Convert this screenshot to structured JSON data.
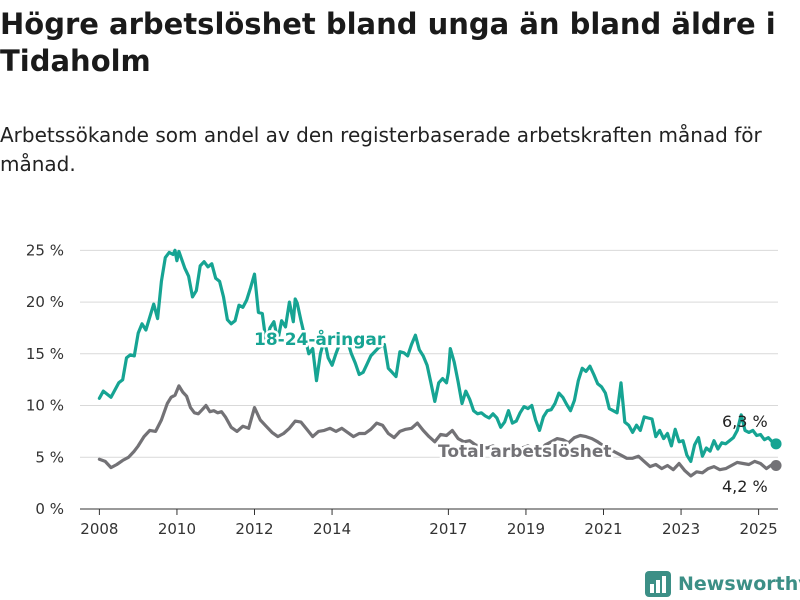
{
  "title": "Högre arbetslöshet bland unga än bland äldre i Tidaholm",
  "subtitle": "Arbetssökande som andel av den registerbaserade arbetskraften månad för månad.",
  "brand": "Newsworthy",
  "colors": {
    "youth": "#16a493",
    "total": "#737276",
    "grid": "#d9d9d9",
    "brand": "#3c8f86"
  },
  "chart_data": {
    "type": "line",
    "yticks": [
      "0 %",
      "5 %",
      "10 %",
      "15 %",
      "20 %",
      "25 %"
    ],
    "ylim": [
      0,
      26
    ],
    "xlim": [
      2007.5,
      2025.5
    ],
    "xticks": [
      {
        "value": 2008,
        "label": "2008"
      },
      {
        "value": 2010,
        "label": "2010"
      },
      {
        "value": 2012,
        "label": "2012"
      },
      {
        "value": 2014,
        "label": "2014"
      },
      {
        "value": 2017,
        "label": "2017"
      },
      {
        "value": 2019,
        "label": "2019"
      },
      {
        "value": 2021,
        "label": "2021"
      },
      {
        "value": 2023,
        "label": "2023"
      },
      {
        "value": 2025,
        "label": "2025"
      }
    ],
    "series": [
      {
        "name": "18-24-åringar",
        "end_label": "6,3 %",
        "points": [
          [
            2008.0,
            10.7
          ],
          [
            2008.1,
            11.4
          ],
          [
            2008.3,
            10.8
          ],
          [
            2008.5,
            12.2
          ],
          [
            2008.6,
            12.5
          ],
          [
            2008.7,
            14.6
          ],
          [
            2008.8,
            14.9
          ],
          [
            2008.9,
            14.8
          ],
          [
            2009.0,
            17.0
          ],
          [
            2009.1,
            17.9
          ],
          [
            2009.2,
            17.3
          ],
          [
            2009.4,
            19.8
          ],
          [
            2009.5,
            18.4
          ],
          [
            2009.6,
            22.0
          ],
          [
            2009.7,
            24.3
          ],
          [
            2009.8,
            24.8
          ],
          [
            2009.9,
            24.6
          ],
          [
            2009.95,
            25.0
          ],
          [
            2010.0,
            24.0
          ],
          [
            2010.05,
            24.9
          ],
          [
            2010.2,
            23.3
          ],
          [
            2010.3,
            22.5
          ],
          [
            2010.4,
            20.5
          ],
          [
            2010.5,
            21.1
          ],
          [
            2010.6,
            23.5
          ],
          [
            2010.7,
            23.9
          ],
          [
            2010.8,
            23.4
          ],
          [
            2010.9,
            23.7
          ],
          [
            2011.0,
            22.3
          ],
          [
            2011.1,
            22.0
          ],
          [
            2011.2,
            20.5
          ],
          [
            2011.3,
            18.3
          ],
          [
            2011.4,
            17.9
          ],
          [
            2011.5,
            18.2
          ],
          [
            2011.6,
            19.7
          ],
          [
            2011.7,
            19.5
          ],
          [
            2011.8,
            20.2
          ],
          [
            2011.9,
            21.4
          ],
          [
            2012.0,
            22.7
          ],
          [
            2012.1,
            19.0
          ],
          [
            2012.2,
            18.9
          ],
          [
            2012.3,
            16.1
          ],
          [
            2012.4,
            17.5
          ],
          [
            2012.5,
            18.1
          ],
          [
            2012.6,
            16.3
          ],
          [
            2012.7,
            18.2
          ],
          [
            2012.8,
            17.6
          ],
          [
            2012.9,
            20.0
          ],
          [
            2013.0,
            18.1
          ],
          [
            2013.05,
            20.3
          ],
          [
            2013.1,
            19.9
          ],
          [
            2013.2,
            18.2
          ],
          [
            2013.3,
            16.6
          ],
          [
            2013.4,
            15.0
          ],
          [
            2013.5,
            15.5
          ],
          [
            2013.6,
            12.4
          ],
          [
            2013.7,
            15.0
          ],
          [
            2013.8,
            16.4
          ],
          [
            2013.9,
            14.6
          ],
          [
            2014.0,
            13.9
          ],
          [
            2014.1,
            15.0
          ],
          [
            2014.2,
            16.0
          ],
          [
            2014.35,
            16.8
          ],
          [
            2014.5,
            15.0
          ],
          [
            2014.6,
            14.1
          ],
          [
            2014.7,
            13.0
          ],
          [
            2014.8,
            13.2
          ],
          [
            2014.9,
            14.0
          ],
          [
            2015.0,
            14.8
          ],
          [
            2015.2,
            15.6
          ],
          [
            2015.35,
            15.9
          ],
          [
            2015.45,
            13.6
          ],
          [
            2015.55,
            13.2
          ],
          [
            2015.65,
            12.8
          ],
          [
            2015.75,
            15.2
          ],
          [
            2015.85,
            15.1
          ],
          [
            2015.95,
            14.8
          ],
          [
            2016.05,
            15.9
          ],
          [
            2016.15,
            16.8
          ],
          [
            2016.25,
            15.4
          ],
          [
            2016.35,
            14.8
          ],
          [
            2016.45,
            13.9
          ],
          [
            2016.55,
            12.2
          ],
          [
            2016.65,
            10.4
          ],
          [
            2016.75,
            12.2
          ],
          [
            2016.85,
            12.6
          ],
          [
            2016.95,
            12.2
          ],
          [
            2017.0,
            13.2
          ],
          [
            2017.05,
            15.5
          ],
          [
            2017.15,
            14.2
          ],
          [
            2017.25,
            12.3
          ],
          [
            2017.35,
            10.2
          ],
          [
            2017.45,
            11.4
          ],
          [
            2017.55,
            10.6
          ],
          [
            2017.65,
            9.5
          ],
          [
            2017.75,
            9.2
          ],
          [
            2017.85,
            9.3
          ],
          [
            2017.95,
            9.0
          ],
          [
            2018.05,
            8.8
          ],
          [
            2018.15,
            9.2
          ],
          [
            2018.25,
            8.8
          ],
          [
            2018.35,
            7.9
          ],
          [
            2018.45,
            8.4
          ],
          [
            2018.55,
            9.5
          ],
          [
            2018.65,
            8.3
          ],
          [
            2018.75,
            8.5
          ],
          [
            2018.85,
            9.3
          ],
          [
            2018.95,
            9.9
          ],
          [
            2019.05,
            9.7
          ],
          [
            2019.15,
            10.0
          ],
          [
            2019.25,
            8.6
          ],
          [
            2019.35,
            7.6
          ],
          [
            2019.45,
            8.9
          ],
          [
            2019.55,
            9.5
          ],
          [
            2019.65,
            9.6
          ],
          [
            2019.75,
            10.2
          ],
          [
            2019.85,
            11.2
          ],
          [
            2019.95,
            10.8
          ],
          [
            2020.05,
            10.1
          ],
          [
            2020.15,
            9.5
          ],
          [
            2020.25,
            10.5
          ],
          [
            2020.35,
            12.4
          ],
          [
            2020.45,
            13.6
          ],
          [
            2020.55,
            13.3
          ],
          [
            2020.65,
            13.8
          ],
          [
            2020.75,
            13.0
          ],
          [
            2020.85,
            12.1
          ],
          [
            2020.95,
            11.8
          ],
          [
            2021.05,
            11.2
          ],
          [
            2021.15,
            9.7
          ],
          [
            2021.25,
            9.5
          ],
          [
            2021.35,
            9.3
          ],
          [
            2021.45,
            12.2
          ],
          [
            2021.55,
            8.4
          ],
          [
            2021.65,
            8.1
          ],
          [
            2021.75,
            7.4
          ],
          [
            2021.85,
            8.1
          ],
          [
            2021.95,
            7.6
          ],
          [
            2022.05,
            8.9
          ],
          [
            2022.15,
            8.8
          ],
          [
            2022.25,
            8.7
          ],
          [
            2022.35,
            7.0
          ],
          [
            2022.45,
            7.6
          ],
          [
            2022.55,
            6.8
          ],
          [
            2022.65,
            7.3
          ],
          [
            2022.75,
            6.1
          ],
          [
            2022.85,
            7.7
          ],
          [
            2022.95,
            6.5
          ],
          [
            2023.05,
            6.6
          ],
          [
            2023.15,
            5.2
          ],
          [
            2023.25,
            4.6
          ],
          [
            2023.35,
            6.2
          ],
          [
            2023.45,
            6.9
          ],
          [
            2023.55,
            5.1
          ],
          [
            2023.65,
            5.9
          ],
          [
            2023.75,
            5.6
          ],
          [
            2023.85,
            6.6
          ],
          [
            2023.95,
            5.8
          ],
          [
            2024.05,
            6.4
          ],
          [
            2024.15,
            6.3
          ],
          [
            2024.25,
            6.6
          ],
          [
            2024.35,
            6.9
          ],
          [
            2024.45,
            7.6
          ],
          [
            2024.55,
            9.1
          ],
          [
            2024.65,
            7.6
          ],
          [
            2024.75,
            7.4
          ],
          [
            2024.85,
            7.6
          ],
          [
            2024.95,
            7.1
          ],
          [
            2025.05,
            7.2
          ],
          [
            2025.15,
            6.7
          ],
          [
            2025.25,
            6.9
          ],
          [
            2025.35,
            6.5
          ],
          [
            2025.45,
            6.3
          ]
        ]
      },
      {
        "name": "Total arbetslöshet",
        "end_label": "4,2 %",
        "points": [
          [
            2008.0,
            4.8
          ],
          [
            2008.15,
            4.6
          ],
          [
            2008.3,
            4.0
          ],
          [
            2008.45,
            4.3
          ],
          [
            2008.6,
            4.7
          ],
          [
            2008.75,
            5.0
          ],
          [
            2008.9,
            5.6
          ],
          [
            2009.0,
            6.1
          ],
          [
            2009.15,
            7.0
          ],
          [
            2009.3,
            7.6
          ],
          [
            2009.45,
            7.5
          ],
          [
            2009.6,
            8.6
          ],
          [
            2009.75,
            10.2
          ],
          [
            2009.85,
            10.8
          ],
          [
            2009.95,
            11.0
          ],
          [
            2010.05,
            11.9
          ],
          [
            2010.15,
            11.3
          ],
          [
            2010.25,
            10.9
          ],
          [
            2010.35,
            9.8
          ],
          [
            2010.45,
            9.3
          ],
          [
            2010.55,
            9.2
          ],
          [
            2010.65,
            9.6
          ],
          [
            2010.75,
            10.0
          ],
          [
            2010.85,
            9.4
          ],
          [
            2010.95,
            9.5
          ],
          [
            2011.05,
            9.3
          ],
          [
            2011.15,
            9.4
          ],
          [
            2011.25,
            8.9
          ],
          [
            2011.4,
            7.9
          ],
          [
            2011.55,
            7.5
          ],
          [
            2011.7,
            8.0
          ],
          [
            2011.85,
            7.8
          ],
          [
            2012.0,
            9.8
          ],
          [
            2012.15,
            8.6
          ],
          [
            2012.3,
            8.0
          ],
          [
            2012.45,
            7.4
          ],
          [
            2012.6,
            7.0
          ],
          [
            2012.75,
            7.3
          ],
          [
            2012.9,
            7.8
          ],
          [
            2013.05,
            8.5
          ],
          [
            2013.2,
            8.4
          ],
          [
            2013.35,
            7.7
          ],
          [
            2013.5,
            7.0
          ],
          [
            2013.65,
            7.5
          ],
          [
            2013.8,
            7.6
          ],
          [
            2013.95,
            7.8
          ],
          [
            2014.1,
            7.5
          ],
          [
            2014.25,
            7.8
          ],
          [
            2014.4,
            7.4
          ],
          [
            2014.55,
            7.0
          ],
          [
            2014.7,
            7.3
          ],
          [
            2014.85,
            7.3
          ],
          [
            2015.0,
            7.7
          ],
          [
            2015.15,
            8.3
          ],
          [
            2015.3,
            8.1
          ],
          [
            2015.45,
            7.3
          ],
          [
            2015.6,
            6.9
          ],
          [
            2015.75,
            7.5
          ],
          [
            2015.9,
            7.7
          ],
          [
            2016.05,
            7.8
          ],
          [
            2016.2,
            8.3
          ],
          [
            2016.35,
            7.6
          ],
          [
            2016.5,
            7.0
          ],
          [
            2016.65,
            6.5
          ],
          [
            2016.8,
            7.2
          ],
          [
            2016.95,
            7.1
          ],
          [
            2017.1,
            7.6
          ],
          [
            2017.25,
            6.8
          ],
          [
            2017.4,
            6.5
          ],
          [
            2017.55,
            6.6
          ],
          [
            2017.7,
            6.2
          ],
          [
            2017.85,
            6.0
          ],
          [
            2018.0,
            5.9
          ],
          [
            2018.15,
            6.1
          ],
          [
            2018.3,
            5.8
          ],
          [
            2018.45,
            5.6
          ],
          [
            2018.6,
            5.9
          ],
          [
            2018.75,
            5.7
          ],
          [
            2018.9,
            5.9
          ],
          [
            2019.05,
            6.1
          ],
          [
            2019.2,
            5.8
          ],
          [
            2019.35,
            5.6
          ],
          [
            2019.5,
            6.2
          ],
          [
            2019.65,
            6.5
          ],
          [
            2019.8,
            6.8
          ],
          [
            2019.95,
            6.7
          ],
          [
            2020.1,
            6.4
          ],
          [
            2020.25,
            6.9
          ],
          [
            2020.4,
            7.1
          ],
          [
            2020.55,
            7.0
          ],
          [
            2020.7,
            6.8
          ],
          [
            2020.85,
            6.5
          ],
          [
            2021.0,
            6.1
          ],
          [
            2021.15,
            5.8
          ],
          [
            2021.3,
            5.5
          ],
          [
            2021.45,
            5.2
          ],
          [
            2021.6,
            4.9
          ],
          [
            2021.75,
            4.9
          ],
          [
            2021.9,
            5.1
          ],
          [
            2022.05,
            4.6
          ],
          [
            2022.2,
            4.1
          ],
          [
            2022.35,
            4.3
          ],
          [
            2022.5,
            3.9
          ],
          [
            2022.65,
            4.2
          ],
          [
            2022.8,
            3.8
          ],
          [
            2022.95,
            4.4
          ],
          [
            2023.1,
            3.7
          ],
          [
            2023.25,
            3.2
          ],
          [
            2023.4,
            3.6
          ],
          [
            2023.55,
            3.5
          ],
          [
            2023.7,
            3.9
          ],
          [
            2023.85,
            4.1
          ],
          [
            2024.0,
            3.8
          ],
          [
            2024.15,
            3.9
          ],
          [
            2024.3,
            4.2
          ],
          [
            2024.45,
            4.5
          ],
          [
            2024.6,
            4.4
          ],
          [
            2024.75,
            4.3
          ],
          [
            2024.9,
            4.6
          ],
          [
            2025.05,
            4.4
          ],
          [
            2025.2,
            3.9
          ],
          [
            2025.35,
            4.3
          ],
          [
            2025.45,
            4.2
          ]
        ]
      }
    ]
  }
}
